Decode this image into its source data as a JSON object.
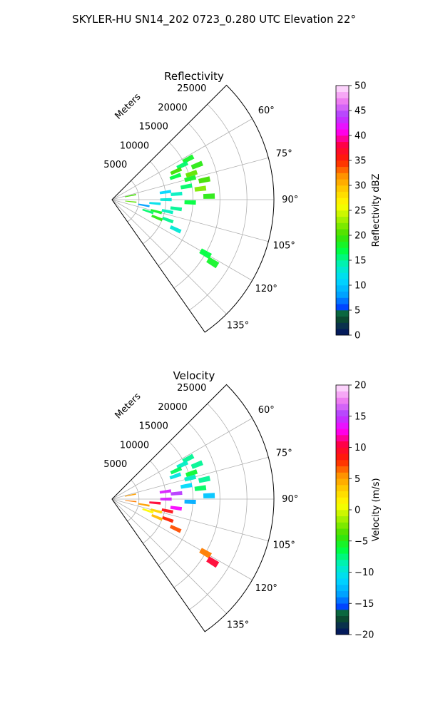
{
  "figure_title": "SKYLER-HU  SN14_202  0723_0.280 UTC Elevation 22°",
  "colors": {
    "grid": "#b0b0b0",
    "frame": "#000000",
    "background": "#ffffff"
  },
  "chart_data": [
    {
      "type": "polar-sector",
      "title": "Reflectivity",
      "radial_label": "Meters",
      "radial_ticks": [
        "5000",
        "10000",
        "15000",
        "20000",
        "25000"
      ],
      "radial_tick_values": [
        5000,
        10000,
        15000,
        20000,
        25000
      ],
      "rlim": [
        0,
        30000
      ],
      "theta_ticks": [
        "60°",
        "75°",
        "90°",
        "105°",
        "120°",
        "135°"
      ],
      "theta_tick_values": [
        60,
        75,
        90,
        105,
        120,
        135
      ],
      "theta_lim_deg": [
        45,
        145
      ],
      "grid": true,
      "colorbar": {
        "label": "Reflectivity dBZ",
        "range": [
          0,
          50
        ],
        "ticks": [
          "0",
          "5",
          "10",
          "15",
          "20",
          "25",
          "30",
          "35",
          "40",
          "45",
          "50"
        ],
        "tick_values": [
          0,
          5,
          10,
          15,
          20,
          25,
          30,
          35,
          40,
          45,
          50
        ]
      },
      "field_estimate": [
        {
          "az": 62,
          "r": 16000,
          "v": 18
        },
        {
          "az": 64,
          "r": 14500,
          "v": 16
        },
        {
          "az": 66,
          "r": 13000,
          "v": 20
        },
        {
          "az": 68,
          "r": 17000,
          "v": 19
        },
        {
          "az": 70,
          "r": 12500,
          "v": 17
        },
        {
          "az": 72,
          "r": 15500,
          "v": 21
        },
        {
          "az": 75,
          "r": 15000,
          "v": 18
        },
        {
          "az": 78,
          "r": 17500,
          "v": 20
        },
        {
          "az": 80,
          "r": 14000,
          "v": 16
        },
        {
          "az": 83,
          "r": 16500,
          "v": 22
        },
        {
          "az": 85,
          "r": 12000,
          "v": 14
        },
        {
          "az": 88,
          "r": 18000,
          "v": 19
        },
        {
          "az": 90,
          "r": 10000,
          "v": 13
        },
        {
          "az": 92,
          "r": 14500,
          "v": 17
        },
        {
          "az": 95,
          "r": 8000,
          "v": 12
        },
        {
          "az": 98,
          "r": 12000,
          "v": 15
        },
        {
          "az": 100,
          "r": 6000,
          "v": 8
        },
        {
          "az": 102,
          "r": 10500,
          "v": 14
        },
        {
          "az": 105,
          "r": 8500,
          "v": 18
        },
        {
          "az": 108,
          "r": 7000,
          "v": 16
        },
        {
          "az": 110,
          "r": 11000,
          "v": 15
        },
        {
          "az": 112,
          "r": 9000,
          "v": 19
        },
        {
          "az": 115,
          "r": 13000,
          "v": 13
        },
        {
          "az": 120,
          "r": 20000,
          "v": 17
        },
        {
          "az": 122,
          "r": 22000,
          "v": 18
        },
        {
          "az": 78,
          "r": 3500,
          "v": 20
        },
        {
          "az": 96,
          "r": 3500,
          "v": 21
        },
        {
          "az": 82,
          "r": 10000,
          "v": 11
        }
      ]
    },
    {
      "type": "polar-sector",
      "title": "Velocity",
      "radial_label": "Meters",
      "radial_ticks": [
        "5000",
        "10000",
        "15000",
        "20000",
        "25000"
      ],
      "radial_tick_values": [
        5000,
        10000,
        15000,
        20000,
        25000
      ],
      "rlim": [
        0,
        30000
      ],
      "theta_ticks": [
        "60°",
        "75°",
        "90°",
        "105°",
        "120°",
        "135°"
      ],
      "theta_tick_values": [
        60,
        75,
        90,
        105,
        120,
        135
      ],
      "theta_lim_deg": [
        45,
        145
      ],
      "grid": true,
      "colorbar": {
        "label": "Velocity (m/s)",
        "range": [
          -20,
          20
        ],
        "ticks": [
          "−20",
          "−15",
          "−10",
          "−5",
          "0",
          "5",
          "10",
          "15",
          "20"
        ],
        "tick_values": [
          -20,
          -15,
          -10,
          -5,
          0,
          5,
          10,
          15,
          20
        ]
      },
      "field_estimate": [
        {
          "az": 62,
          "r": 16000,
          "v": -8
        },
        {
          "az": 64,
          "r": 14500,
          "v": -9
        },
        {
          "az": 66,
          "r": 13000,
          "v": -7
        },
        {
          "az": 68,
          "r": 17000,
          "v": -8
        },
        {
          "az": 70,
          "r": 12500,
          "v": -10
        },
        {
          "az": 72,
          "r": 15500,
          "v": -6
        },
        {
          "az": 75,
          "r": 15000,
          "v": -9
        },
        {
          "az": 78,
          "r": 17500,
          "v": -8
        },
        {
          "az": 80,
          "r": 14000,
          "v": -11
        },
        {
          "az": 83,
          "r": 16500,
          "v": -7
        },
        {
          "az": 85,
          "r": 12000,
          "v": 15
        },
        {
          "az": 88,
          "r": 18000,
          "v": -12
        },
        {
          "az": 90,
          "r": 10000,
          "v": 14
        },
        {
          "az": 92,
          "r": 14500,
          "v": -13
        },
        {
          "az": 95,
          "r": 8000,
          "v": 10
        },
        {
          "az": 98,
          "r": 12000,
          "v": 13
        },
        {
          "az": 100,
          "r": 6000,
          "v": 5
        },
        {
          "az": 102,
          "r": 10500,
          "v": 9
        },
        {
          "az": 105,
          "r": 8500,
          "v": 3
        },
        {
          "az": 108,
          "r": 7000,
          "v": 1
        },
        {
          "az": 110,
          "r": 11000,
          "v": 8
        },
        {
          "az": 112,
          "r": 9000,
          "v": 4
        },
        {
          "az": 115,
          "r": 13000,
          "v": 7
        },
        {
          "az": 120,
          "r": 20000,
          "v": 6
        },
        {
          "az": 122,
          "r": 22000,
          "v": 10
        },
        {
          "az": 78,
          "r": 3500,
          "v": 5
        },
        {
          "az": 96,
          "r": 3500,
          "v": 6
        },
        {
          "az": 82,
          "r": 10000,
          "v": 14
        }
      ]
    }
  ]
}
